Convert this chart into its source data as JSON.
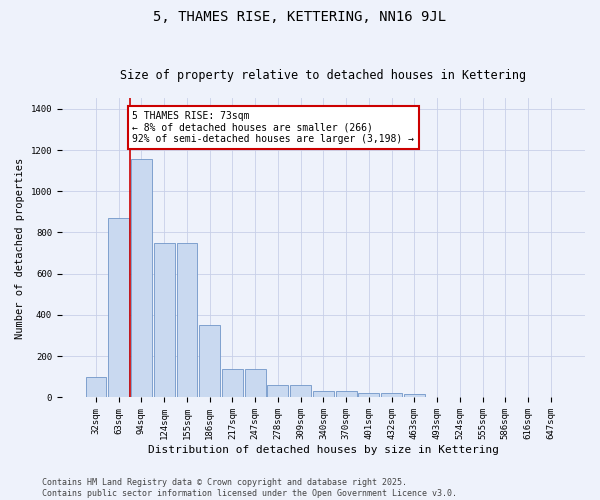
{
  "title": "5, THAMES RISE, KETTERING, NN16 9JL",
  "subtitle": "Size of property relative to detached houses in Kettering",
  "xlabel": "Distribution of detached houses by size in Kettering",
  "ylabel": "Number of detached properties",
  "categories": [
    "32sqm",
    "63sqm",
    "94sqm",
    "124sqm",
    "155sqm",
    "186sqm",
    "217sqm",
    "247sqm",
    "278sqm",
    "309sqm",
    "340sqm",
    "370sqm",
    "401sqm",
    "432sqm",
    "463sqm",
    "493sqm",
    "524sqm",
    "555sqm",
    "586sqm",
    "616sqm",
    "647sqm"
  ],
  "values": [
    100,
    870,
    1155,
    750,
    750,
    350,
    140,
    140,
    60,
    60,
    30,
    30,
    20,
    20,
    15,
    0,
    0,
    0,
    0,
    0,
    0
  ],
  "bar_color": "#c9d9f0",
  "bar_edge_color": "#7096c8",
  "background_color": "#eef2fb",
  "grid_color": "#c8d0e8",
  "vline_x": 1.5,
  "vline_color": "#cc0000",
  "annotation_text": "5 THAMES RISE: 73sqm\n← 8% of detached houses are smaller (266)\n92% of semi-detached houses are larger (3,198) →",
  "annotation_box_color": "#cc0000",
  "ylim": [
    0,
    1450
  ],
  "yticks": [
    0,
    200,
    400,
    600,
    800,
    1000,
    1200,
    1400
  ],
  "footer_text": "Contains HM Land Registry data © Crown copyright and database right 2025.\nContains public sector information licensed under the Open Government Licence v3.0.",
  "title_fontsize": 10,
  "subtitle_fontsize": 8.5,
  "xlabel_fontsize": 8,
  "ylabel_fontsize": 7.5,
  "tick_fontsize": 6.5,
  "annotation_fontsize": 7,
  "footer_fontsize": 6
}
